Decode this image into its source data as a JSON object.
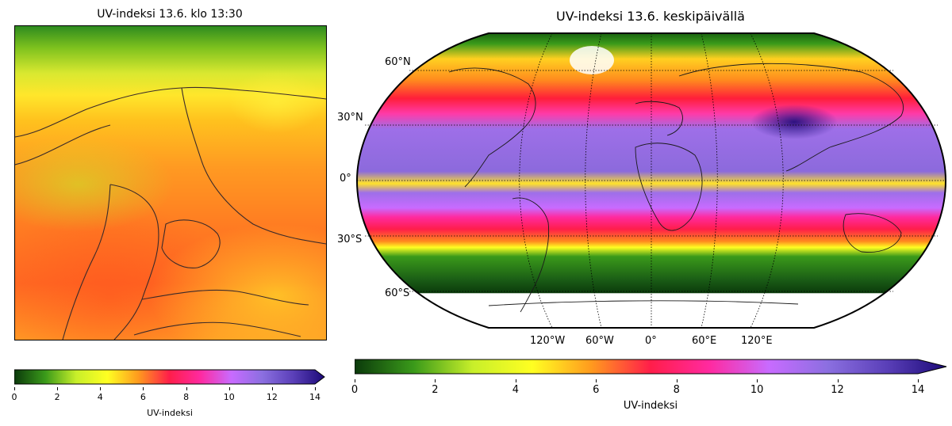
{
  "left_panel": {
    "title": "UV-indeksi 13.6. klo 13:30",
    "colorbar": {
      "label": "UV-indeksi",
      "ticks": [
        "0",
        "2",
        "4",
        "6",
        "8",
        "10",
        "12",
        "14"
      ],
      "min": 0,
      "max": 14,
      "extend": "max"
    }
  },
  "right_panel": {
    "title": "UV-indeksi 13.6. keskipäivällä",
    "lat_labels": [
      "60°N",
      "30°N",
      "0°",
      "30°S",
      "60°S"
    ],
    "lon_labels": [
      "120°W",
      "60°W",
      "0°",
      "60°E",
      "120°E"
    ],
    "colorbar": {
      "label": "UV-indeksi",
      "ticks": [
        "0",
        "2",
        "4",
        "6",
        "8",
        "10",
        "12",
        "14"
      ],
      "min": 0,
      "max": 14,
      "extend": "max"
    }
  },
  "colormap_stops": [
    "#0b3a0b",
    "#3a9a1a",
    "#c8ef2a",
    "#ffff22",
    "#ff9a1e",
    "#ff1e4a",
    "#ff2aa0",
    "#c86bff",
    "#8b6fe0",
    "#5a3fb8",
    "#1c0a78"
  ]
}
